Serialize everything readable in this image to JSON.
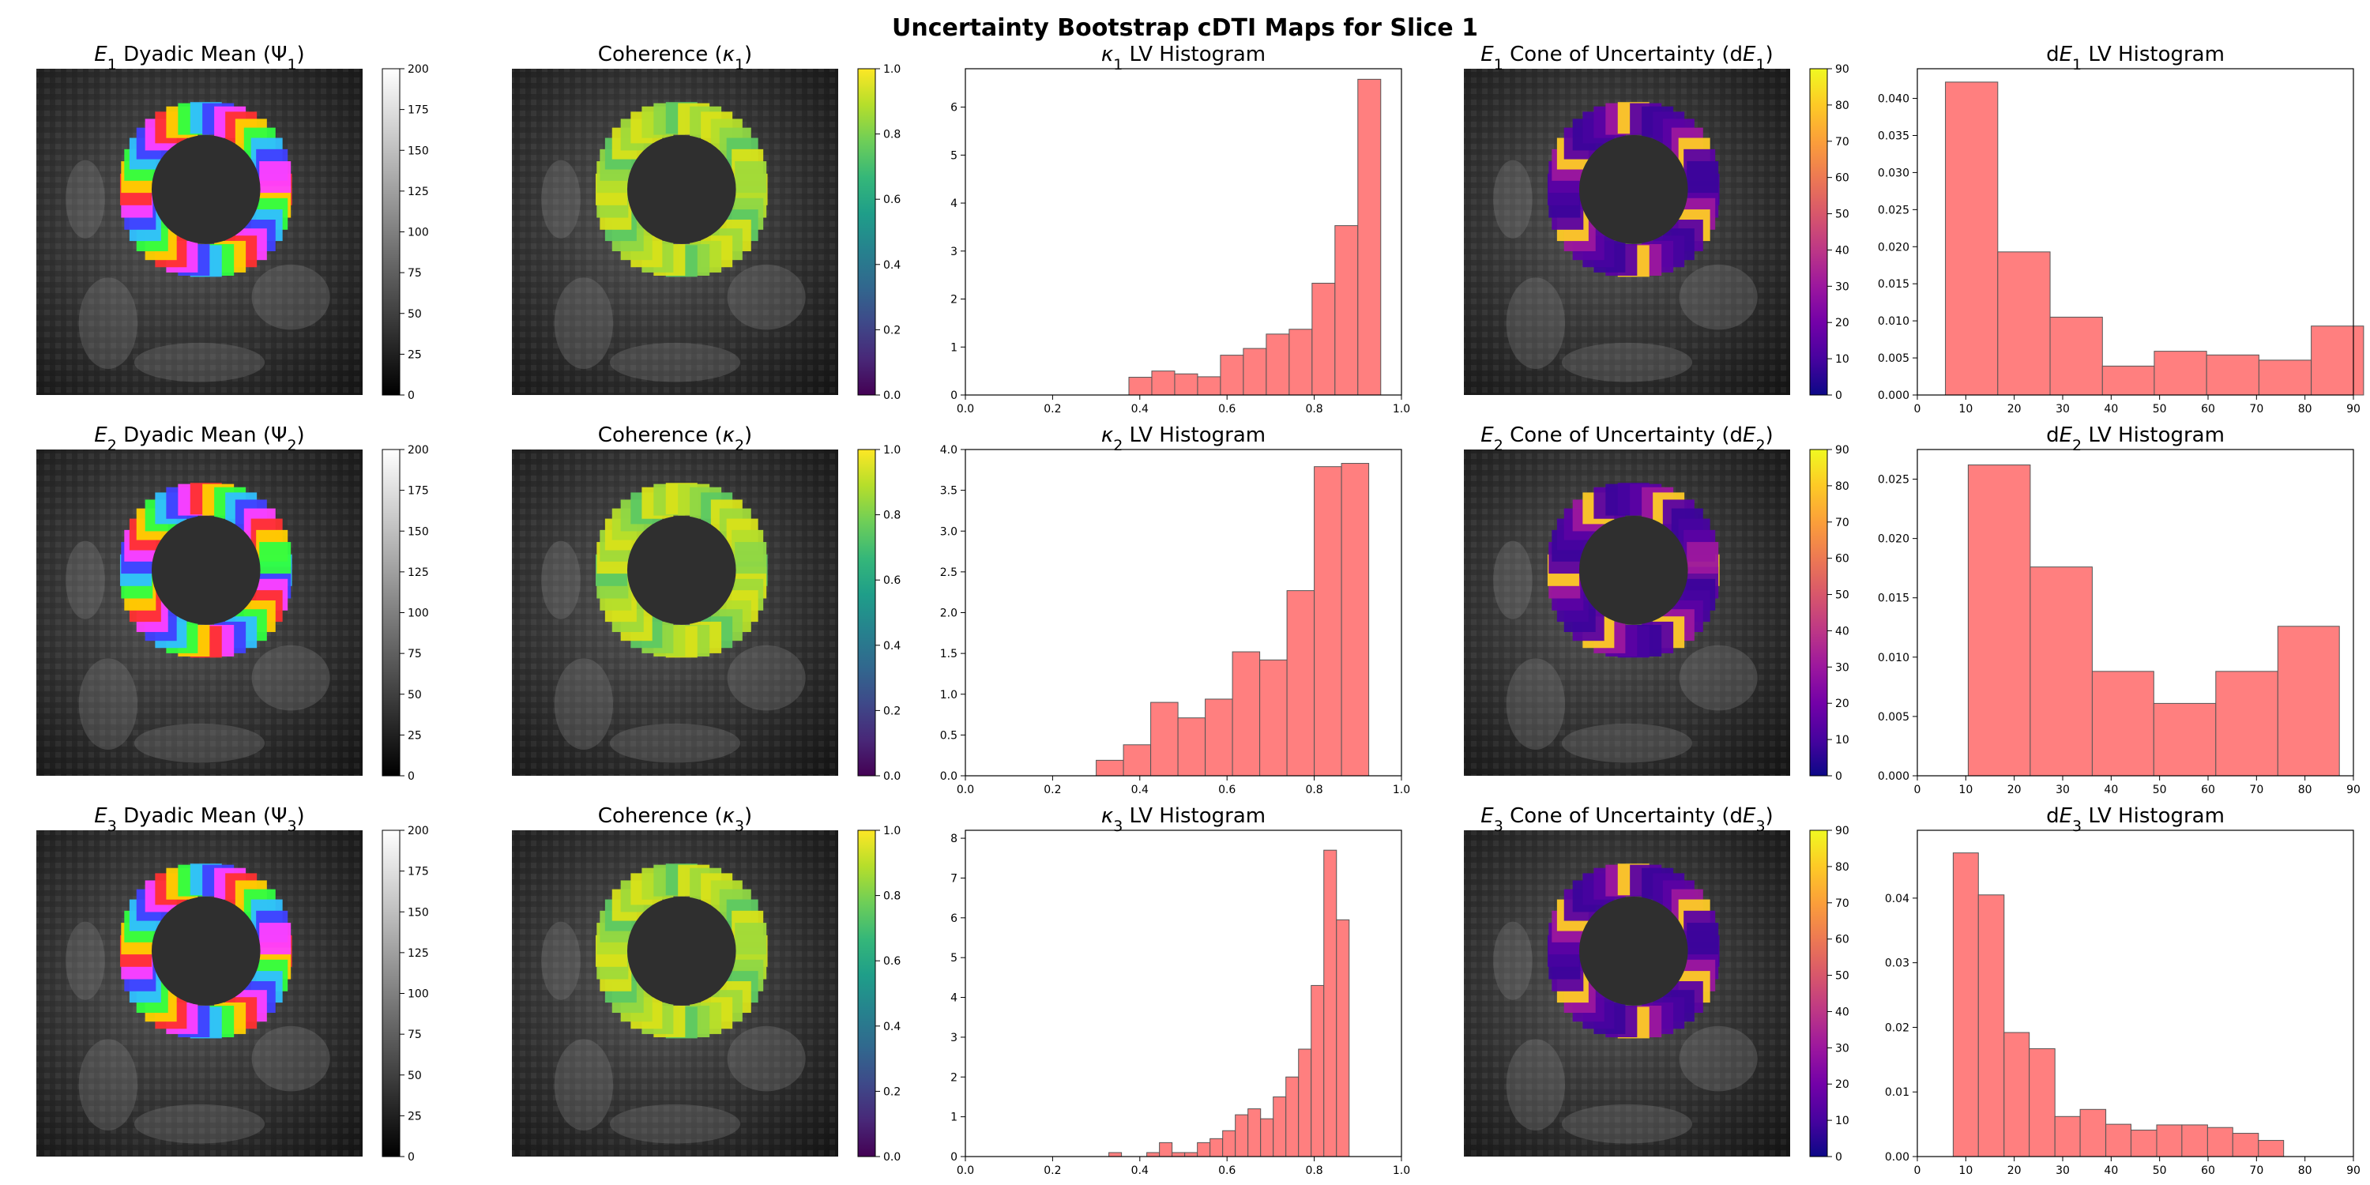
{
  "figure_title": "Uncertainty Bootstrap cDTI Maps for Slice 1",
  "colors": {
    "hist_fill": "#ff7f7f",
    "hist_edge": "#555555",
    "viridis": [
      "#440154",
      "#482878",
      "#3e4989",
      "#31688e",
      "#26828e",
      "#1f9e89",
      "#35b779",
      "#6ece58",
      "#b5de2b",
      "#fde725"
    ],
    "plasma": [
      "#0d0887",
      "#47039f",
      "#7301a8",
      "#9c179e",
      "#bd3786",
      "#d8576b",
      "#ed7953",
      "#fb9f3a",
      "#fdca26",
      "#f0f921"
    ],
    "gray": [
      "#000000",
      "#ffffff"
    ]
  },
  "chart_data": [
    {
      "type": "image",
      "row": 0,
      "col": 0,
      "title_symbol": "E",
      "title_sub": "1",
      "title_text": " Dyadic Mean  (Ψ",
      "title_text_sub": "1",
      "title_end": ")",
      "colorbar": {
        "cmap": "gray",
        "range": [
          0,
          200
        ],
        "ticks": [
          "0",
          "25",
          "50",
          "75",
          "100",
          "125",
          "150",
          "175",
          "200"
        ]
      }
    },
    {
      "type": "image",
      "row": 0,
      "col": 1,
      "title_pre": "Coherence (",
      "title_symbol": "κ",
      "title_sub": "1",
      "title_end": ")",
      "colorbar": {
        "cmap": "viridis",
        "range": [
          0,
          1
        ],
        "ticks": [
          "0.0",
          "0.2",
          "0.4",
          "0.6",
          "0.8",
          "1.0"
        ]
      }
    },
    {
      "type": "histogram",
      "row": 0,
      "col": 2,
      "title_symbol": "κ",
      "title_sub": "1",
      "title_text": " LV Histogram",
      "xlim": [
        0,
        1
      ],
      "ylim": [
        0,
        6.8
      ],
      "xticks": [
        "0.0",
        "0.2",
        "0.4",
        "0.6",
        "0.8",
        "1.0"
      ],
      "yticks": [
        "0",
        "1",
        "2",
        "3",
        "4",
        "5",
        "6"
      ],
      "bins": [
        [
          0.375,
          0.4275,
          0.37
        ],
        [
          0.4275,
          0.48,
          0.5
        ],
        [
          0.48,
          0.5325,
          0.44
        ],
        [
          0.5325,
          0.585,
          0.38
        ],
        [
          0.585,
          0.6375,
          0.83
        ],
        [
          0.6375,
          0.69,
          0.97
        ],
        [
          0.69,
          0.7425,
          1.27
        ],
        [
          0.7425,
          0.795,
          1.37
        ],
        [
          0.795,
          0.8475,
          2.33
        ],
        [
          0.8475,
          0.9,
          3.53
        ],
        [
          0.9,
          0.9525,
          6.58
        ]
      ]
    },
    {
      "type": "image",
      "row": 0,
      "col": 3,
      "title_symbol": "E",
      "title_sub": "1",
      "title_text": " Cone of Uncertainty (d",
      "title_symbol2": "E",
      "title_sub2": "1",
      "title_end": ")",
      "colorbar": {
        "cmap": "plasma",
        "range": [
          0,
          90
        ],
        "ticks": [
          "0",
          "10",
          "20",
          "30",
          "40",
          "50",
          "60",
          "70",
          "80",
          "90"
        ]
      }
    },
    {
      "type": "histogram",
      "row": 0,
      "col": 4,
      "title_pre": "d",
      "title_symbol": "E",
      "title_sub": "1",
      "title_text": " LV Histogram",
      "xlim": [
        0,
        90
      ],
      "ylim": [
        0,
        0.044
      ],
      "xticks": [
        "0",
        "10",
        "20",
        "30",
        "40",
        "50",
        "60",
        "70",
        "80",
        "90"
      ],
      "yticks": [
        "0.000",
        "0.005",
        "0.010",
        "0.015",
        "0.020",
        "0.025",
        "0.030",
        "0.035",
        "0.040"
      ],
      "bins": [
        [
          5.8,
          16.6,
          0.0422
        ],
        [
          16.6,
          27.4,
          0.0193
        ],
        [
          27.4,
          38.2,
          0.0105
        ],
        [
          38.2,
          48.9,
          0.0039
        ],
        [
          48.9,
          59.7,
          0.0059
        ],
        [
          59.7,
          70.5,
          0.0054
        ],
        [
          70.5,
          81.3,
          0.0047
        ],
        [
          81.3,
          92.1,
          0.0093
        ]
      ]
    },
    {
      "type": "image",
      "row": 1,
      "col": 0,
      "title_symbol": "E",
      "title_sub": "2",
      "title_text": " Dyadic Mean  (Ψ",
      "title_text_sub": "2",
      "title_end": ")",
      "colorbar": {
        "cmap": "gray",
        "range": [
          0,
          200
        ],
        "ticks": [
          "0",
          "25",
          "50",
          "75",
          "100",
          "125",
          "150",
          "175",
          "200"
        ]
      }
    },
    {
      "type": "image",
      "row": 1,
      "col": 1,
      "title_pre": "Coherence (",
      "title_symbol": "κ",
      "title_sub": "2",
      "title_end": ")",
      "colorbar": {
        "cmap": "viridis",
        "range": [
          0,
          1
        ],
        "ticks": [
          "0.0",
          "0.2",
          "0.4",
          "0.6",
          "0.8",
          "1.0"
        ]
      }
    },
    {
      "type": "histogram",
      "row": 1,
      "col": 2,
      "title_symbol": "κ",
      "title_sub": "2",
      "title_text": " LV Histogram",
      "xlim": [
        0,
        1
      ],
      "ylim": [
        0,
        4.0
      ],
      "xticks": [
        "0.0",
        "0.2",
        "0.4",
        "0.6",
        "0.8",
        "1.0"
      ],
      "yticks": [
        "0.0",
        "0.5",
        "1.0",
        "1.5",
        "2.0",
        "2.5",
        "3.0",
        "3.5",
        "4.0"
      ],
      "bins": [
        [
          0.3,
          0.3625,
          0.19
        ],
        [
          0.3625,
          0.425,
          0.38
        ],
        [
          0.425,
          0.4875,
          0.9
        ],
        [
          0.4875,
          0.55,
          0.71
        ],
        [
          0.55,
          0.6125,
          0.94
        ],
        [
          0.6125,
          0.675,
          1.52
        ],
        [
          0.675,
          0.7375,
          1.42
        ],
        [
          0.7375,
          0.8,
          2.27
        ],
        [
          0.8,
          0.8625,
          3.79
        ],
        [
          0.8625,
          0.925,
          3.83
        ]
      ]
    },
    {
      "type": "image",
      "row": 1,
      "col": 3,
      "title_symbol": "E",
      "title_sub": "2",
      "title_text": " Cone of Uncertainty (d",
      "title_symbol2": "E",
      "title_sub2": "2",
      "title_end": ")",
      "colorbar": {
        "cmap": "plasma",
        "range": [
          0,
          90
        ],
        "ticks": [
          "0",
          "10",
          "20",
          "30",
          "40",
          "50",
          "60",
          "70",
          "80",
          "90"
        ]
      }
    },
    {
      "type": "histogram",
      "row": 1,
      "col": 4,
      "title_pre": "d",
      "title_symbol": "E",
      "title_sub": "2",
      "title_text": " LV Histogram",
      "xlim": [
        0,
        90
      ],
      "ylim": [
        0,
        0.0275
      ],
      "xticks": [
        "0",
        "10",
        "20",
        "30",
        "40",
        "50",
        "60",
        "70",
        "80",
        "90"
      ],
      "yticks": [
        "0.000",
        "0.005",
        "0.010",
        "0.015",
        "0.020",
        "0.025"
      ],
      "bins": [
        [
          10.5,
          23.3,
          0.0262
        ],
        [
          23.3,
          36.1,
          0.0176
        ],
        [
          36.1,
          48.8,
          0.0088
        ],
        [
          48.8,
          61.6,
          0.0061
        ],
        [
          61.6,
          74.4,
          0.0088
        ],
        [
          74.4,
          87.1,
          0.0126
        ]
      ]
    },
    {
      "type": "image",
      "row": 2,
      "col": 0,
      "title_symbol": "E",
      "title_sub": "3",
      "title_text": " Dyadic Mean  (Ψ",
      "title_text_sub": "3",
      "title_end": ")",
      "colorbar": {
        "cmap": "gray",
        "range": [
          0,
          200
        ],
        "ticks": [
          "0",
          "25",
          "50",
          "75",
          "100",
          "125",
          "150",
          "175",
          "200"
        ]
      }
    },
    {
      "type": "image",
      "row": 2,
      "col": 1,
      "title_pre": "Coherence (",
      "title_symbol": "κ",
      "title_sub": "3",
      "title_end": ")",
      "colorbar": {
        "cmap": "viridis",
        "range": [
          0,
          1
        ],
        "ticks": [
          "0.0",
          "0.2",
          "0.4",
          "0.6",
          "0.8",
          "1.0"
        ]
      }
    },
    {
      "type": "histogram",
      "row": 2,
      "col": 2,
      "title_symbol": "κ",
      "title_sub": "3",
      "title_text": " LV Histogram",
      "xlim": [
        0,
        1
      ],
      "ylim": [
        0,
        8.2
      ],
      "xticks": [
        "0.0",
        "0.2",
        "0.4",
        "0.6",
        "0.8",
        "1.0"
      ],
      "yticks": [
        "0",
        "1",
        "2",
        "3",
        "4",
        "5",
        "6",
        "7",
        "8"
      ],
      "bins": [
        [
          0.3,
          0.329,
          0.0
        ],
        [
          0.329,
          0.358,
          0.1
        ],
        [
          0.358,
          0.387,
          0.0
        ],
        [
          0.387,
          0.416,
          0.0
        ],
        [
          0.416,
          0.445,
          0.1
        ],
        [
          0.445,
          0.474,
          0.35
        ],
        [
          0.474,
          0.503,
          0.1
        ],
        [
          0.503,
          0.532,
          0.1
        ],
        [
          0.532,
          0.561,
          0.35
        ],
        [
          0.561,
          0.59,
          0.45
        ],
        [
          0.59,
          0.619,
          0.65
        ],
        [
          0.619,
          0.648,
          1.05
        ],
        [
          0.648,
          0.677,
          1.2
        ],
        [
          0.677,
          0.706,
          0.95
        ],
        [
          0.706,
          0.735,
          1.5
        ],
        [
          0.735,
          0.764,
          2.0
        ],
        [
          0.764,
          0.793,
          2.7
        ],
        [
          0.793,
          0.822,
          4.3
        ],
        [
          0.822,
          0.851,
          7.7
        ],
        [
          0.851,
          0.88,
          5.95
        ]
      ]
    },
    {
      "type": "image",
      "row": 2,
      "col": 3,
      "title_symbol": "E",
      "title_sub": "3",
      "title_text": " Cone of Uncertainty (d",
      "title_symbol2": "E",
      "title_sub2": "3",
      "title_end": ")",
      "colorbar": {
        "cmap": "plasma",
        "range": [
          0,
          90
        ],
        "ticks": [
          "0",
          "10",
          "20",
          "30",
          "40",
          "50",
          "60",
          "70",
          "80",
          "90"
        ]
      }
    },
    {
      "type": "histogram",
      "row": 2,
      "col": 4,
      "title_pre": "d",
      "title_symbol": "E",
      "title_sub": "3",
      "title_text": " LV Histogram",
      "xlim": [
        0,
        90
      ],
      "ylim": [
        0,
        0.0505
      ],
      "xticks": [
        "0",
        "10",
        "20",
        "30",
        "40",
        "50",
        "60",
        "70",
        "80",
        "90"
      ],
      "yticks": [
        "0.00",
        "0.01",
        "0.02",
        "0.03",
        "0.04"
      ],
      "bins": [
        [
          7.4,
          12.6,
          0.047
        ],
        [
          12.6,
          17.9,
          0.0405
        ],
        [
          17.9,
          23.1,
          0.0192
        ],
        [
          23.1,
          28.4,
          0.0167
        ],
        [
          28.4,
          33.6,
          0.0062
        ],
        [
          33.6,
          38.9,
          0.0073
        ],
        [
          38.9,
          44.1,
          0.005
        ],
        [
          44.1,
          49.4,
          0.0041
        ],
        [
          49.4,
          54.6,
          0.0049
        ],
        [
          54.6,
          59.9,
          0.0049
        ],
        [
          59.9,
          65.1,
          0.0045
        ],
        [
          65.1,
          70.4,
          0.0036
        ],
        [
          70.4,
          75.6,
          0.0025
        ]
      ]
    }
  ]
}
